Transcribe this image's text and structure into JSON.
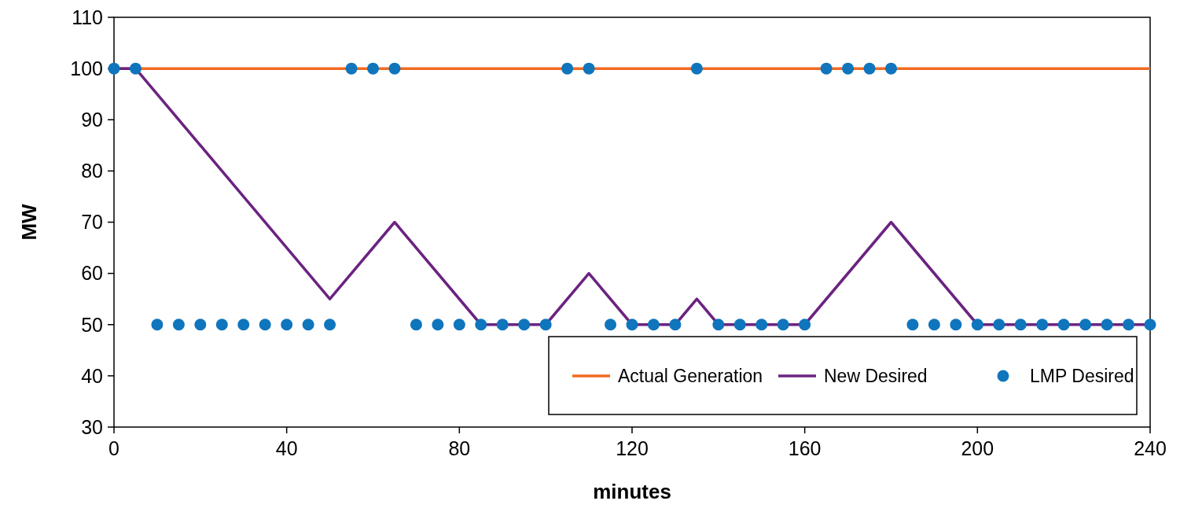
{
  "chart_data": {
    "type": "line",
    "xlabel": "minutes",
    "ylabel": "MW",
    "xlim": [
      0,
      240
    ],
    "xticks": [
      0,
      40,
      80,
      120,
      160,
      200,
      240
    ],
    "ylim": [
      30,
      110
    ],
    "yticks": [
      30,
      40,
      50,
      60,
      70,
      80,
      90,
      100,
      110
    ],
    "grid": false,
    "legend": "bottom right",
    "series": [
      {
        "name": "Actual Generation",
        "color": "#f26a21",
        "x": [
          0,
          240
        ],
        "values": [
          100,
          100
        ]
      },
      {
        "name": "New Desired",
        "color": "#6b2380",
        "x": [
          0,
          5,
          50,
          65,
          85,
          100,
          110,
          120,
          130,
          135,
          140,
          160,
          180,
          200,
          240
        ],
        "values": [
          100,
          100,
          55,
          70,
          50,
          50,
          60,
          50,
          50,
          55,
          50,
          50,
          70,
          50,
          50
        ]
      },
      {
        "name": "LMP Desired",
        "type": "scatter",
        "marker": "circle",
        "color": "#0f75bc",
        "x": [
          0,
          5,
          10,
          15,
          20,
          25,
          30,
          35,
          40,
          45,
          50,
          55,
          60,
          65,
          70,
          75,
          80,
          85,
          90,
          95,
          100,
          105,
          110,
          115,
          120,
          125,
          130,
          135,
          140,
          145,
          150,
          155,
          160,
          165,
          170,
          175,
          180,
          185,
          190,
          195,
          200,
          205,
          210,
          215,
          220,
          225,
          230,
          235,
          240
        ],
        "values": [
          100,
          100,
          50,
          50,
          50,
          50,
          50,
          50,
          50,
          50,
          50,
          100,
          100,
          100,
          50,
          50,
          50,
          50,
          50,
          50,
          50,
          100,
          100,
          50,
          50,
          50,
          50,
          100,
          50,
          50,
          50,
          50,
          50,
          100,
          100,
          100,
          100,
          50,
          50,
          50,
          50,
          50,
          50,
          50,
          50,
          50,
          50,
          50,
          50
        ]
      }
    ]
  }
}
